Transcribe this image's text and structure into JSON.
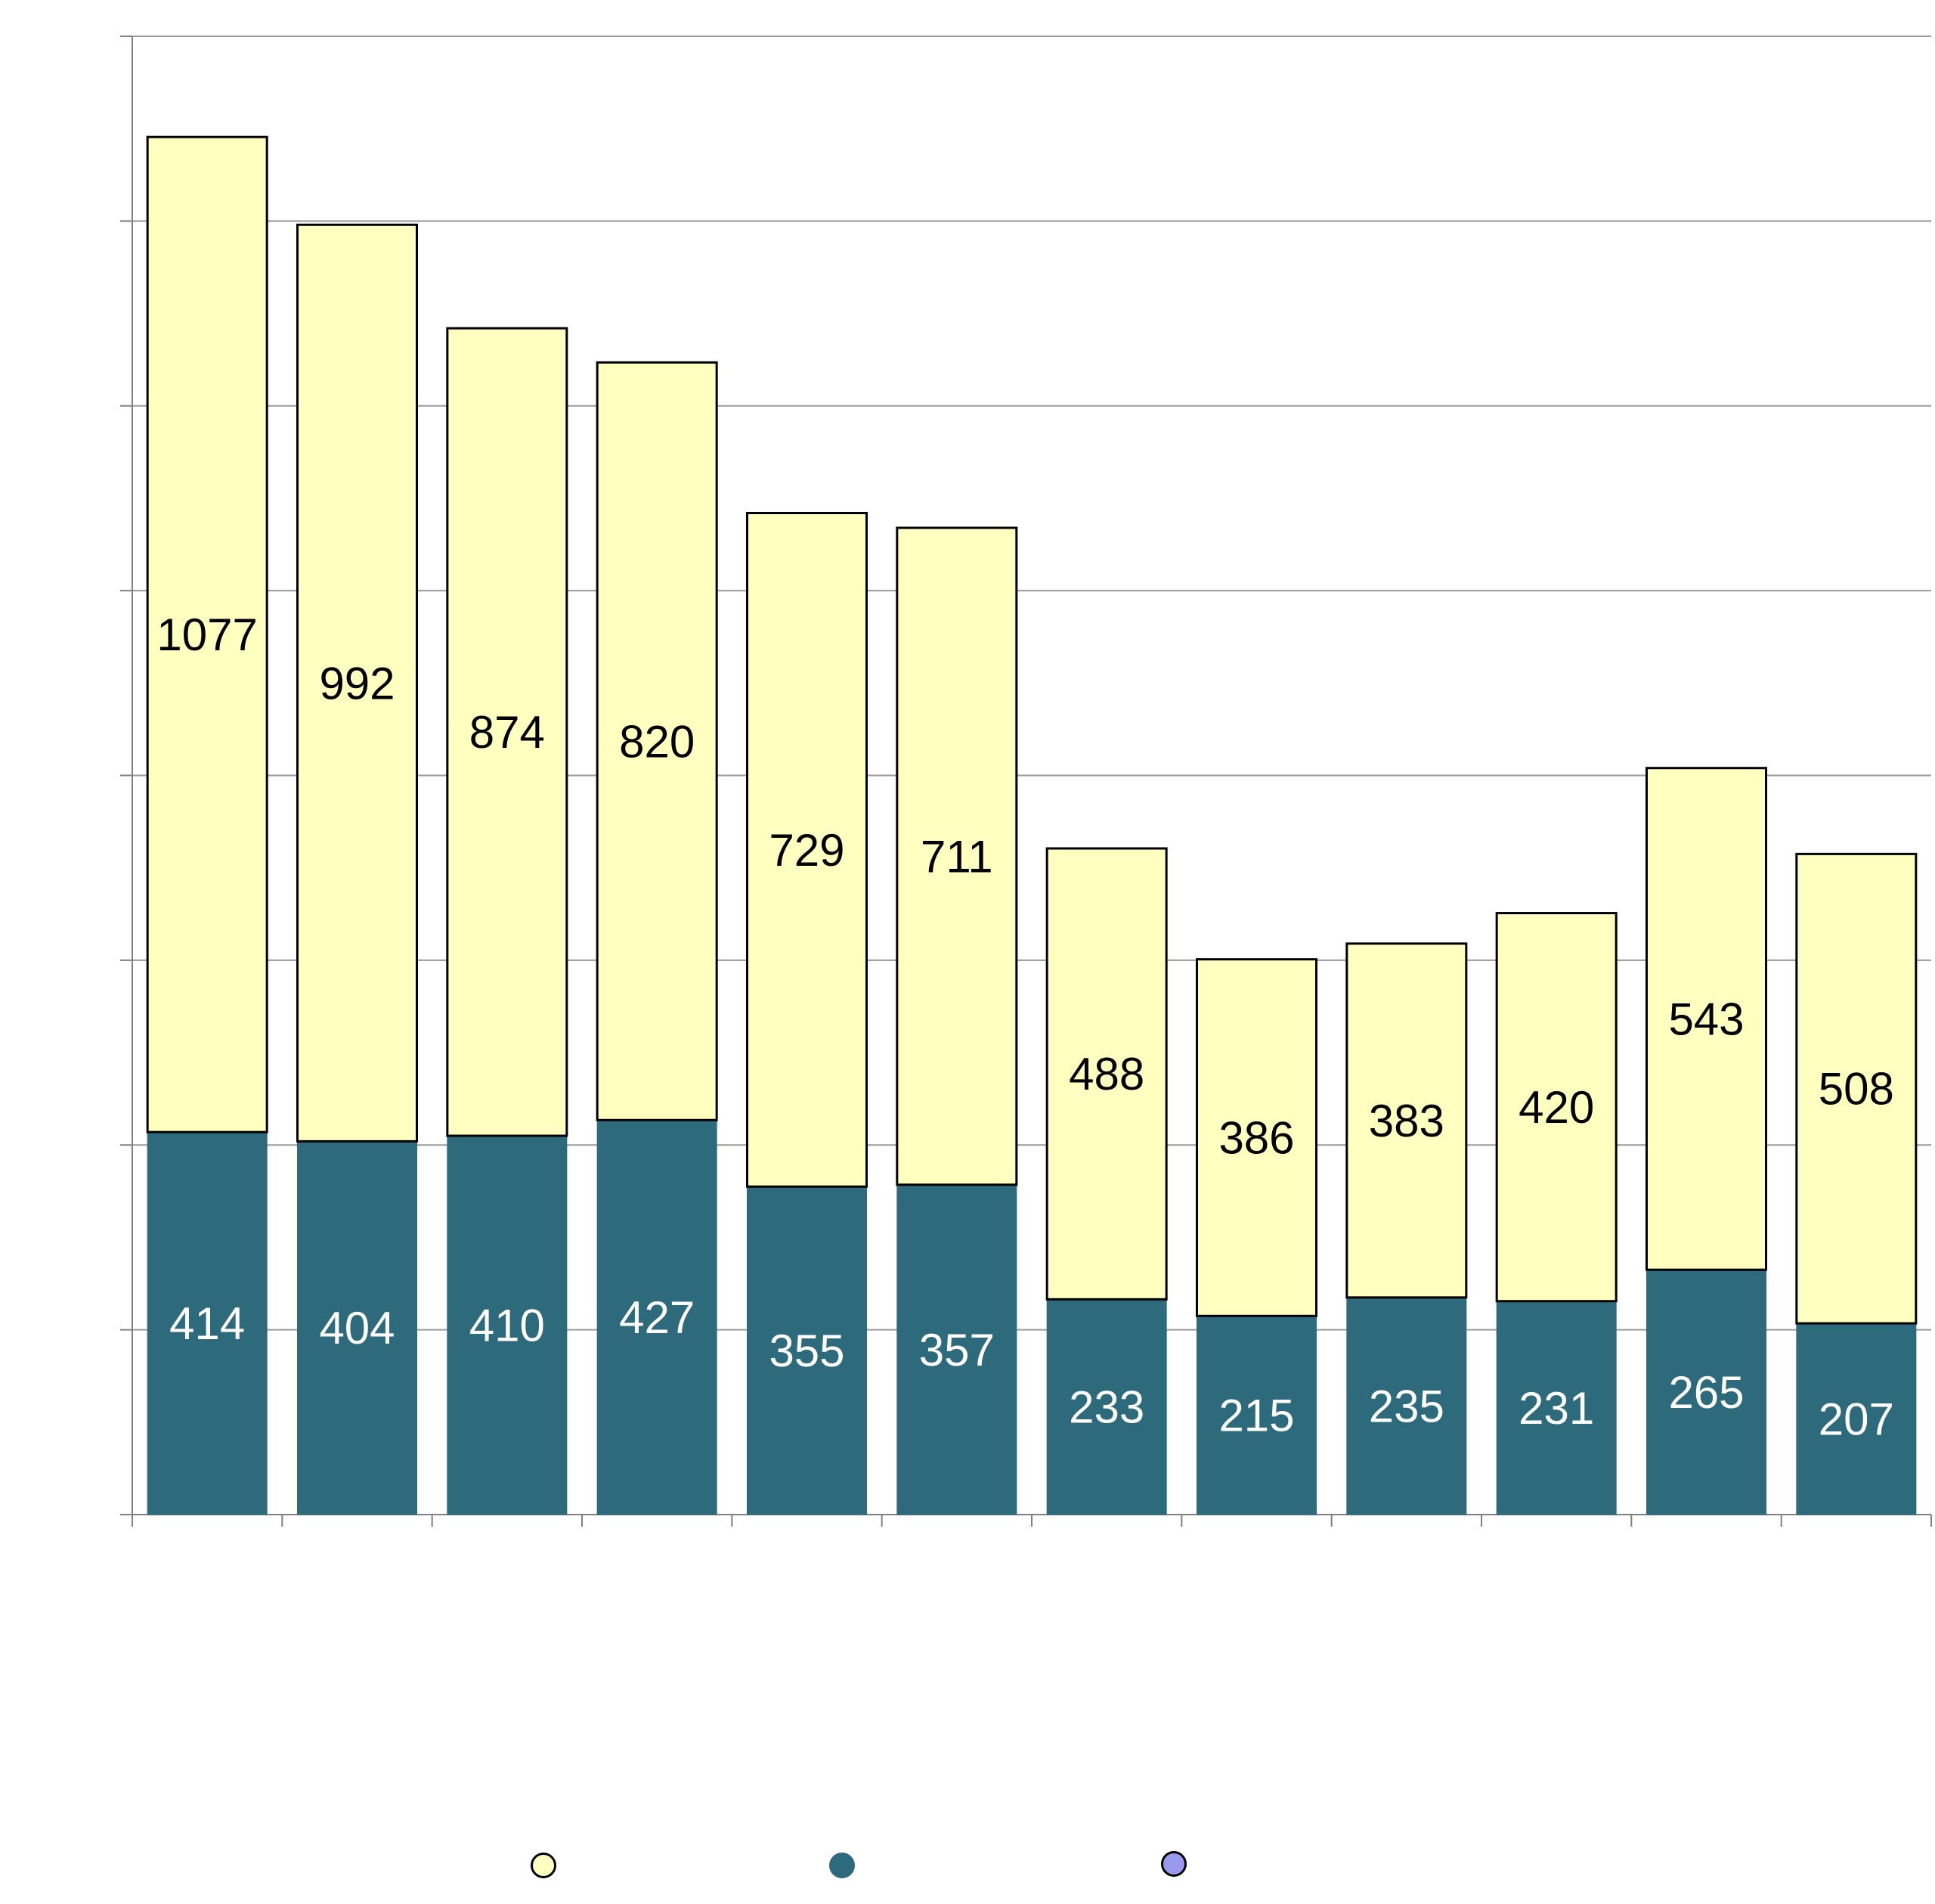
{
  "colors": {
    "upper_fill": "#FFFFC0",
    "lower_fill": "#2D6A7C",
    "third_marker": "#9999EE",
    "upper_label": "#000000",
    "lower_label": "#FFFFFF",
    "grid": "#9A9A9A",
    "axis": "#808080"
  },
  "chart_data": {
    "type": "bar",
    "stacked": true,
    "categories": [
      "",
      "",
      "",
      "",
      "",
      "",
      "",
      "",
      "",
      "",
      "",
      ""
    ],
    "series": [
      {
        "values": [
          414,
          404,
          410,
          427,
          355,
          357,
          233,
          215,
          235,
          231,
          265,
          207
        ]
      },
      {
        "values": [
          1077,
          992,
          874,
          820,
          729,
          711,
          488,
          386,
          383,
          420,
          543,
          508
        ]
      }
    ],
    "ylim": [
      0,
      1600
    ],
    "y_gridline_step": 200,
    "grid": true,
    "legend": {
      "placement": "bottom",
      "entries": 3
    },
    "title": "",
    "xlabel": "",
    "ylabel": ""
  }
}
